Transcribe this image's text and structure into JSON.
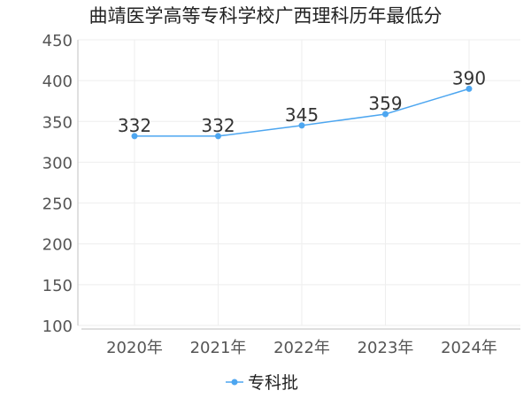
{
  "chart_data": {
    "type": "line",
    "title": "曲靖医学高等专科学校广西理科历年最低分",
    "categories": [
      "2020年",
      "2021年",
      "2022年",
      "2023年",
      "2024年"
    ],
    "series": [
      {
        "name": "专科批",
        "values": [
          332,
          332,
          345,
          359,
          390
        ]
      }
    ],
    "data_labels": [
      "332",
      "332",
      "345",
      "359",
      "390"
    ],
    "yticks": [
      100,
      150,
      200,
      250,
      300,
      350,
      400,
      450
    ],
    "ytick_labels": [
      "100",
      "150",
      "200",
      "250",
      "300",
      "350",
      "400",
      "450"
    ],
    "ylim": [
      100,
      450
    ],
    "xlabel": "",
    "ylabel": "",
    "grid": true,
    "legend_position": "bottom-center",
    "colors": {
      "series": "#4da6f0",
      "grid": "#eeeeee",
      "axis": "#cccccc"
    }
  }
}
